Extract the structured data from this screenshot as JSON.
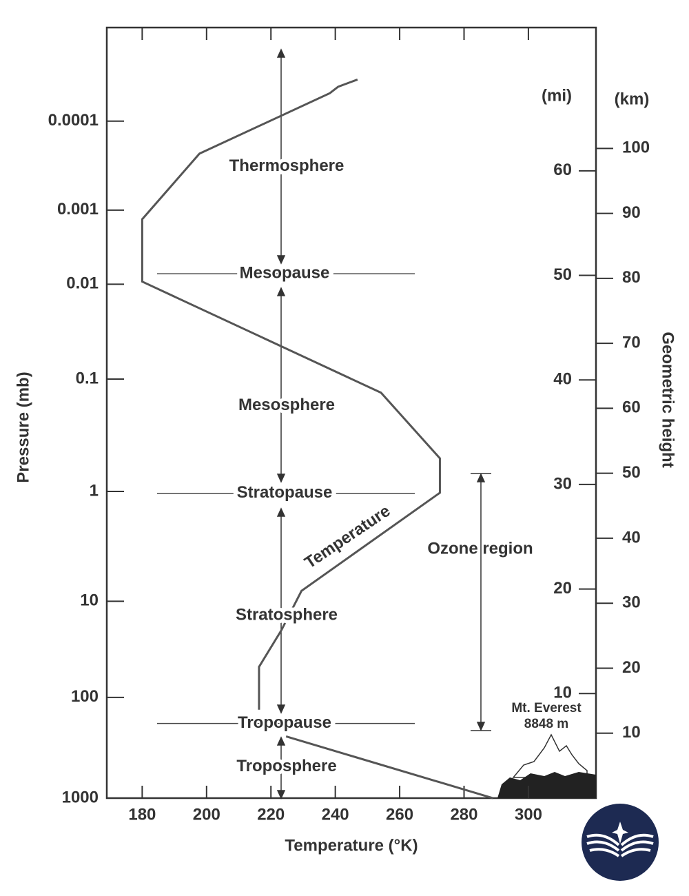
{
  "chart_data": {
    "type": "line",
    "x_label": "Temperature (°K)",
    "xlim": [
      169,
      321
    ],
    "xticks": [
      180,
      200,
      220,
      240,
      260,
      280,
      300
    ],
    "y_label": "Geometric height",
    "y_unit": "(km)",
    "ylim": [
      0,
      118.6
    ],
    "yticks": [
      10,
      20,
      30,
      40,
      50,
      60,
      70,
      80,
      90,
      100
    ],
    "y2_unit": "(mi)",
    "y2lim": [
      0,
      73.7
    ],
    "y2ticks": [
      10,
      20,
      30,
      40,
      50,
      60
    ],
    "pressure_label": "Pressure (mb)",
    "pressure_ticks": [
      {
        "value": 0.0001,
        "height": 104.2
      },
      {
        "value": 0.001,
        "height": 90.5
      },
      {
        "value": 0.01,
        "height": 79.1
      },
      {
        "value": 0.1,
        "height": 64.5
      },
      {
        "value": 1,
        "height": 47.2
      },
      {
        "value": 10,
        "height": 30.3
      },
      {
        "value": 100,
        "height": 15.5
      },
      {
        "value": 1000,
        "height": 0
      }
    ],
    "series": [
      {
        "name": "Temperature",
        "color": "#555555",
        "x": [
          289,
          224.7,
          null,
          216.3,
          216.3,
          223.2,
          229.5,
          272.5,
          272.5,
          254.2,
          180,
          180,
          197.8,
          238.3,
          240.9,
          246.9
        ],
        "values": [
          0,
          9.5,
          null,
          13.6,
          20.2,
          25.8,
          31.9,
          47,
          52.3,
          62.4,
          79.5,
          89.1,
          99.2,
          108.5,
          109.5,
          110.6
        ]
      }
    ],
    "layers": [
      {
        "name": "Thermosphere",
        "height": 97.2
      },
      {
        "name": "Mesosphere",
        "height": 60.4
      },
      {
        "name": "Stratosphere",
        "height": 28.1
      },
      {
        "name": "Troposphere",
        "height": 4.8
      }
    ],
    "boundaries": [
      {
        "name": "Mesopause",
        "height": 80.7
      },
      {
        "name": "Stratopause",
        "height": 46.9
      },
      {
        "name": "Tropopause",
        "height": 11.5
      }
    ],
    "ozone_label": "Ozone region",
    "everest": [
      "Mt. Everest",
      "8848 m"
    ]
  }
}
